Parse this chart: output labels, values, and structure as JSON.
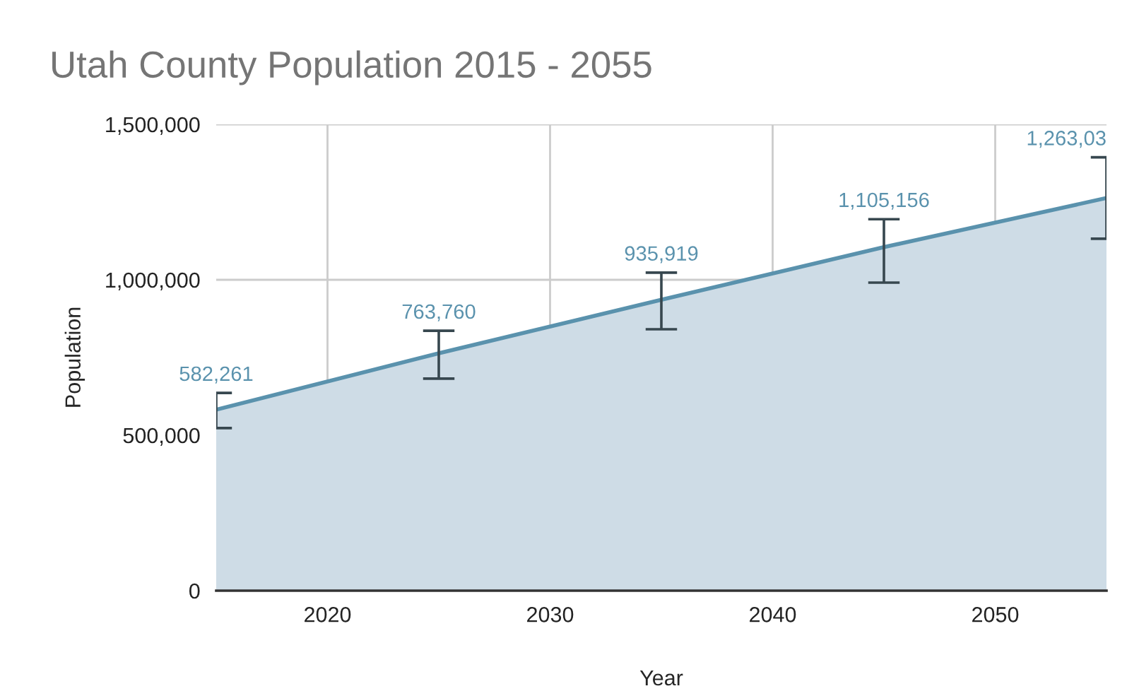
{
  "chart_data": {
    "type": "area",
    "title": "Utah County Population 2015 - 2055",
    "xlabel": "Year",
    "ylabel": "Population",
    "x": [
      2015,
      2025,
      2035,
      2045,
      2055
    ],
    "series": [
      {
        "color": "#5a92ad",
        "values": [
          582261,
          763760,
          935919,
          1105156,
          1263030
        ],
        "errors": [
          [
            523000,
            636000
          ],
          [
            682000,
            836000
          ],
          [
            841000,
            1023000
          ],
          [
            991000,
            1195000
          ],
          [
            1132000,
            1394000
          ]
        ],
        "value_labels": [
          "582,261",
          "763,760",
          "935,919",
          "1,105,156",
          "1,263,03"
        ]
      }
    ],
    "xlim": [
      2015,
      2055
    ],
    "xticks": [
      2020,
      2030,
      2040,
      2050
    ],
    "ylim": [
      0,
      1500000
    ],
    "yticks": [
      {
        "value": 0,
        "label": "0"
      },
      {
        "value": 500000,
        "label": "500,000"
      },
      {
        "value": 1000000,
        "label": "1,000,000"
      },
      {
        "value": 1500000,
        "label": "1,500,000"
      }
    ],
    "grid": true,
    "legend": false
  }
}
